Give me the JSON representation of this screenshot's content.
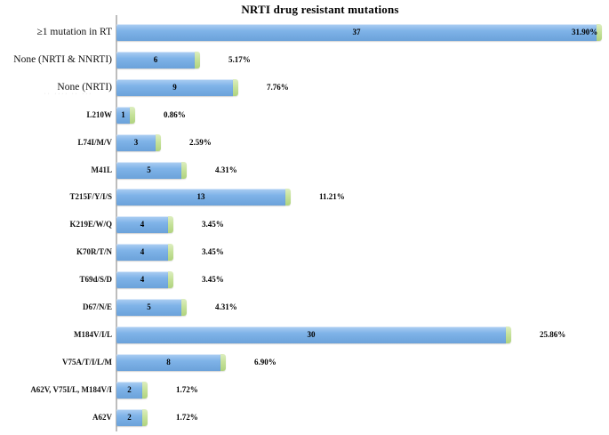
{
  "chart_data": {
    "type": "bar",
    "orientation": "horizontal",
    "title": "NRTI drug resistant mutations",
    "categories": [
      "≥1 mutation in RT",
      "None (NRTI & NNRTI)",
      "None (NRTI)",
      "L210W",
      "L74I/M/V",
      "M41L",
      "T215F/Y/I/S",
      "K219E/W/Q",
      "K70R/T/N",
      "T69d/S/D",
      "D67/N/E",
      "M184V/I/L",
      "V75A/T/I/L/M",
      "A62V, V75I/L, M184V/I",
      "A62V"
    ],
    "values": [
      37,
      6,
      9,
      1,
      3,
      5,
      13,
      4,
      4,
      4,
      5,
      30,
      8,
      2,
      2
    ],
    "percent_labels": [
      "31.90%",
      "5.17%",
      "7.76%",
      "0.86%",
      "2.59%",
      "4.31%",
      "11.21%",
      "3.45%",
      "3.45%",
      "3.45%",
      "4.31%",
      "25.86%",
      "6.90%",
      "1.72%",
      "1.72%"
    ],
    "xlim": [
      0,
      37
    ],
    "grid": false,
    "legend": false,
    "faded_subnote": {
      "row": 2,
      "text": "·· ···· ·· ···"
    }
  },
  "colors": {
    "bar_blue": "#7fb3e8",
    "bar_blue_dark": "#6ba2da",
    "cap_green": "#c4e198",
    "axis_gray": "#bdbdbd",
    "text": "#000000"
  }
}
